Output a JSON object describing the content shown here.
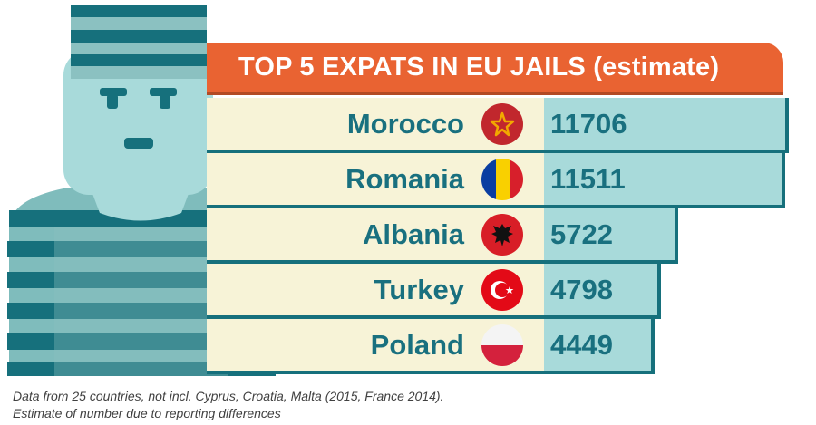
{
  "chart_data": {
    "type": "bar",
    "title": "TOP 5 EXPATS IN EU JAILS (estimate)",
    "categories": [
      "Morocco",
      "Romania",
      "Albania",
      "Turkey",
      "Poland"
    ],
    "values": [
      11706,
      11511,
      5722,
      4798,
      4449
    ],
    "value_labels": [
      "11706",
      "11511",
      "5722",
      "4798",
      "4449"
    ],
    "flags": [
      "morocco-flag-icon",
      "romania-flag-icon",
      "albania-flag-icon",
      "turkey-flag-icon",
      "poland-flag-icon"
    ]
  },
  "footnote": {
    "line1": "Data from 25 countries, not incl. Cyprus, Croatia, Malta (2015, France 2014).",
    "line2": "Estimate of number due to reporting differences"
  },
  "colors": {
    "title_background": "#e96332",
    "bar_light": "#f7f3d7",
    "bar_shade": "#a8dada",
    "bar_edge": "#16707c",
    "label_text": "#19707f"
  }
}
